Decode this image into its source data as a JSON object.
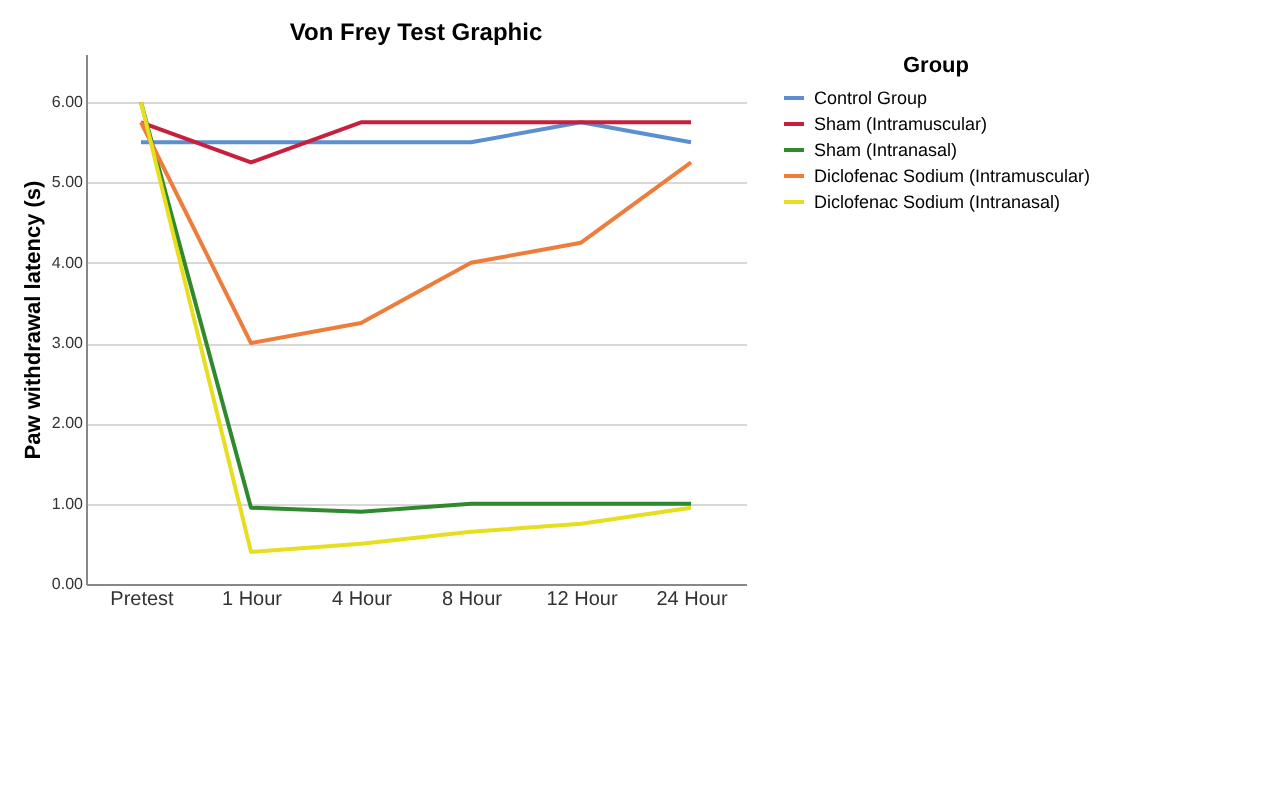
{
  "chart_data": {
    "type": "line",
    "title": "Von Frey Test Graphic",
    "ylabel": "Paw withdrawal latency (s)",
    "legend_title": "Group",
    "categories": [
      "Pretest",
      "1 Hour",
      "4 Hour",
      "8 Hour",
      "12 Hour",
      "24 Hour"
    ],
    "series": [
      {
        "name": "Control Group",
        "color": "#5b8fd0",
        "values": [
          5.5,
          5.5,
          5.5,
          5.5,
          5.75,
          5.5
        ]
      },
      {
        "name": "Sham (Intramuscular)",
        "color": "#c8203c",
        "values": [
          5.75,
          5.25,
          5.75,
          5.75,
          5.75,
          5.75
        ]
      },
      {
        "name": "Sham (Intranasal)",
        "color": "#2f8a2f",
        "values": [
          6.0,
          0.95,
          0.9,
          1.0,
          1.0,
          1.0
        ]
      },
      {
        "name": "Diclofenac Sodium (Intramuscular)",
        "color": "#ee7d3b",
        "values": [
          5.75,
          3.0,
          3.25,
          4.0,
          4.25,
          5.25
        ]
      },
      {
        "name": "Diclofenac Sodium (Intranasal)",
        "color": "#e6de1e",
        "values": [
          6.0,
          0.4,
          0.5,
          0.65,
          0.75,
          0.95
        ]
      }
    ],
    "ylim": [
      0,
      6.6
    ],
    "yticks": [
      {
        "value": 0,
        "label": "0.00"
      },
      {
        "value": 1,
        "label": "1.00"
      },
      {
        "value": 2,
        "label": "2.00"
      },
      {
        "value": 3,
        "label": "3.00"
      },
      {
        "value": 4,
        "label": "4.00"
      },
      {
        "value": 5,
        "label": "5.00"
      },
      {
        "value": 6,
        "label": "6.00"
      }
    ],
    "grid": "y",
    "legend": "right",
    "marker": "none",
    "line_style": "solid"
  }
}
